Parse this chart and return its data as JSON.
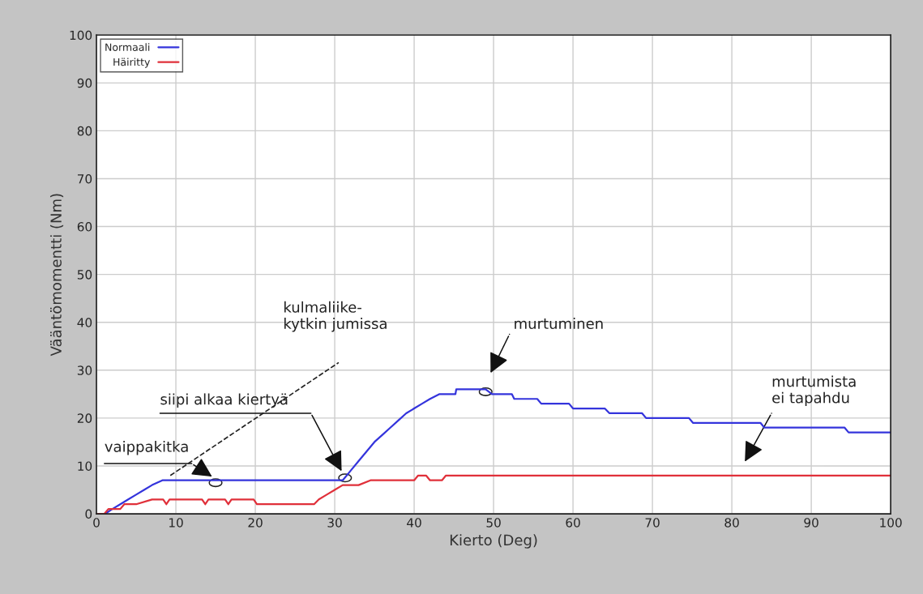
{
  "chart_data": {
    "type": "line",
    "xlabel": "Kierto (Deg)",
    "ylabel": "Vääntömomentti (Nm)",
    "xlim": [
      0,
      100
    ],
    "ylim": [
      0,
      100
    ],
    "xticks": [
      0,
      10,
      20,
      30,
      40,
      50,
      60,
      70,
      80,
      90,
      100
    ],
    "yticks": [
      0,
      10,
      20,
      30,
      40,
      50,
      60,
      70,
      80,
      90,
      100
    ],
    "grid": true,
    "legend": "top left",
    "marker": "none",
    "line_style": "solid",
    "series": [
      {
        "name": "Normaali",
        "color": "#3434dc",
        "x": [
          1.1,
          2,
          3,
          4,
          5,
          6,
          7,
          8.3,
          31,
          32,
          33,
          34,
          35,
          36,
          37,
          38,
          39,
          40,
          41,
          42,
          43.2,
          45.2,
          45.3,
          49,
          49.8,
          52.3,
          52.6,
          55.5,
          56,
          59.5,
          60,
          64,
          64.6,
          68.7,
          69.2,
          74.6,
          75.1,
          83.6,
          84.1,
          94.2,
          94.7,
          100
        ],
        "values": [
          0,
          1,
          2,
          3,
          4,
          5,
          6,
          7,
          7,
          9,
          11,
          13,
          15,
          16.5,
          18,
          19.5,
          21,
          22,
          23,
          24,
          25,
          25,
          26,
          26,
          25,
          25,
          24,
          24,
          23,
          23,
          22,
          22,
          21,
          21,
          20,
          20,
          19,
          19,
          18,
          18,
          17,
          17
        ]
      },
      {
        "name": "Häiritty",
        "color": "#e0303a",
        "x": [
          0,
          1,
          1.5,
          3,
          3.5,
          5,
          7,
          8.4,
          8.8,
          9.2,
          13.3,
          13.7,
          14.1,
          16.2,
          16.6,
          17,
          19.8,
          20.2,
          27.4,
          28,
          29,
          30,
          31,
          33,
          34.5,
          40,
          40.5,
          41.5,
          42,
          43.5,
          44,
          100
        ],
        "values": [
          0,
          0,
          1,
          1,
          2,
          2,
          3,
          3,
          2,
          3,
          3,
          2,
          3,
          3,
          2,
          3,
          3,
          2,
          2,
          3,
          4,
          5,
          6,
          6,
          7,
          7,
          8,
          8,
          7,
          7,
          8,
          8
        ]
      }
    ],
    "annotations": [
      "vaippakitka",
      "siipi alkaa kiertyä",
      "kulmaliike-\nkytkin jumissa",
      "murtuminen",
      "murtumista\nei tapahdu"
    ]
  }
}
